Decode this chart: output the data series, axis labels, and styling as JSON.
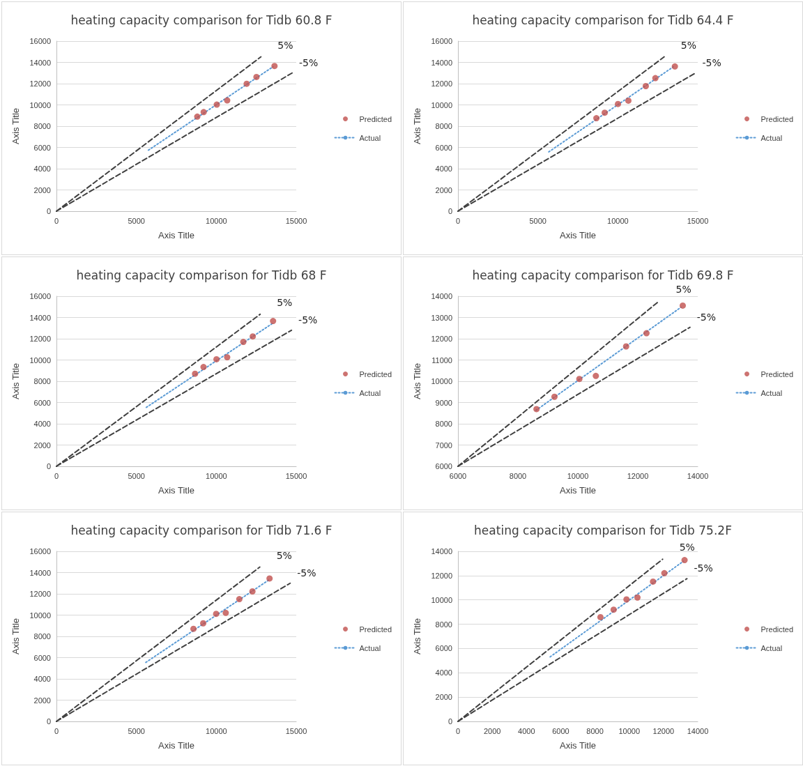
{
  "chart_data": [
    {
      "type": "scatter",
      "title": "heating capacity comparison for Tidb 60.8 F",
      "xlabel": "Axis Title",
      "ylabel": "Axis Title",
      "xlim": [
        0,
        15000
      ],
      "xticks": [
        0,
        5000,
        10000,
        15000
      ],
      "ylim": [
        0,
        16000
      ],
      "yticks": [
        0,
        2000,
        4000,
        6000,
        8000,
        10000,
        12000,
        14000,
        16000
      ],
      "grid": "y",
      "legend": "right",
      "series": [
        {
          "name": "Predicted",
          "color": "#c0504d",
          "marker": "circle",
          "x": [
            8810,
            9210,
            10030,
            10680,
            11900,
            12510,
            13640
          ],
          "values": [
            8900,
            9320,
            10030,
            10420,
            11990,
            12630,
            13660
          ]
        },
        {
          "name": "Actual",
          "type": "line",
          "color": "#5b9bd5",
          "marker": "none",
          "line_style": "dotted",
          "x": [
            5750,
            13550
          ],
          "values": [
            5740,
            13590
          ]
        },
        {
          "type": "line",
          "color": "#404040",
          "marker": "none",
          "line_style": "dashed",
          "x": [
            0,
            12790
          ],
          "values": [
            0,
            14520
          ]
        },
        {
          "type": "line",
          "color": "#404040",
          "marker": "none",
          "line_style": "dashed",
          "x": [
            0,
            14740
          ],
          "values": [
            0,
            13000
          ]
        }
      ],
      "annotations": [
        {
          "text": "5%",
          "x": 12790,
          "y": 14520
        },
        {
          "text": "-5%",
          "x": 14740,
          "y": 13000
        }
      ]
    },
    {
      "type": "scatter",
      "title": "heating capacity comparison for Tidb 64.4 F",
      "xlabel": "Axis Title",
      "ylabel": "Axis Title",
      "xlim": [
        0,
        15000
      ],
      "xticks": [
        0,
        5000,
        10000,
        15000
      ],
      "ylim": [
        0,
        16000
      ],
      "yticks": [
        0,
        2000,
        4000,
        6000,
        8000,
        10000,
        12000,
        14000,
        16000
      ],
      "grid": "y",
      "legend": "right",
      "series": [
        {
          "name": "Predicted",
          "color": "#c0504d",
          "marker": "circle",
          "x": [
            8660,
            9180,
            10010,
            10660,
            11750,
            12350,
            13570
          ],
          "values": [
            8750,
            9270,
            10090,
            10400,
            11770,
            12520,
            13620
          ]
        },
        {
          "name": "Actual",
          "type": "line",
          "color": "#5b9bd5",
          "marker": "none",
          "line_style": "dotted",
          "x": [
            5680,
            13470
          ],
          "values": [
            5580,
            13580
          ]
        },
        {
          "type": "line",
          "color": "#404040",
          "marker": "none",
          "line_style": "dashed",
          "x": [
            0,
            12900
          ],
          "values": [
            0,
            14520
          ]
        },
        {
          "type": "line",
          "color": "#404040",
          "marker": "none",
          "line_style": "dashed",
          "x": [
            0,
            14850
          ],
          "values": [
            0,
            12990
          ]
        }
      ],
      "annotations": [
        {
          "text": "5%",
          "x": 12900,
          "y": 14520
        },
        {
          "text": "-5%",
          "x": 14850,
          "y": 12990
        }
      ]
    },
    {
      "type": "scatter",
      "title": "heating capacity comparison for Tidb 68 F",
      "xlabel": "Axis Title",
      "ylabel": "Axis Title",
      "xlim": [
        0,
        15000
      ],
      "xticks": [
        0,
        5000,
        10000,
        15000
      ],
      "ylim": [
        0,
        16000
      ],
      "yticks": [
        0,
        2000,
        4000,
        6000,
        8000,
        10000,
        12000,
        14000,
        16000
      ],
      "grid": "y",
      "legend": "right",
      "series": [
        {
          "name": "Predicted",
          "color": "#c0504d",
          "marker": "circle",
          "x": [
            8670,
            9200,
            10010,
            10680,
            11690,
            12280,
            13550
          ],
          "values": [
            8710,
            9340,
            10070,
            10260,
            11700,
            12220,
            13670
          ]
        },
        {
          "name": "Actual",
          "type": "line",
          "color": "#5b9bd5",
          "marker": "none",
          "line_style": "dotted",
          "x": [
            5620,
            13550
          ],
          "values": [
            5540,
            13480
          ]
        },
        {
          "type": "line",
          "color": "#404040",
          "marker": "none",
          "line_style": "dashed",
          "x": [
            0,
            12740
          ],
          "values": [
            0,
            14300
          ]
        },
        {
          "type": "line",
          "color": "#404040",
          "marker": "none",
          "line_style": "dashed",
          "x": [
            0,
            14700
          ],
          "values": [
            0,
            12800
          ]
        }
      ],
      "annotations": [
        {
          "text": "5%",
          "x": 12740,
          "y": 14300
        },
        {
          "text": "-5%",
          "x": 14700,
          "y": 12800
        }
      ]
    },
    {
      "type": "scatter",
      "title": "heating capacity comparison for Tidb 69.8 F",
      "xlabel": "Axis Title",
      "ylabel": "Axis Title",
      "xlim": [
        6000,
        14000
      ],
      "xticks": [
        6000,
        8000,
        10000,
        12000,
        14000
      ],
      "ylim": [
        6000,
        14000
      ],
      "yticks": [
        6000,
        7000,
        8000,
        9000,
        10000,
        11000,
        12000,
        13000,
        14000
      ],
      "grid": "y",
      "legend": "right",
      "series": [
        {
          "name": "Predicted",
          "color": "#c0504d",
          "marker": "circle",
          "x": [
            8620,
            9220,
            10050,
            10600,
            11610,
            12290,
            13500
          ],
          "values": [
            8690,
            9270,
            10110,
            10250,
            11640,
            12260,
            13560
          ]
        },
        {
          "name": "Actual",
          "type": "line",
          "color": "#5b9bd5",
          "marker": "none",
          "line_style": "dotted",
          "x": [
            8600,
            13440
          ],
          "values": [
            8630,
            13480
          ]
        },
        {
          "type": "line",
          "color": "#404040",
          "marker": "none",
          "line_style": "dashed",
          "x": [
            6000,
            12710
          ],
          "values": [
            6000,
            13770
          ]
        },
        {
          "type": "line",
          "color": "#404040",
          "marker": "none",
          "line_style": "dashed",
          "x": [
            6000,
            13740
          ],
          "values": [
            6000,
            12540
          ]
        }
      ],
      "annotations": [
        {
          "text": "5%",
          "x": 12710,
          "y": 13770
        },
        {
          "text": "-5%",
          "x": 13740,
          "y": 12540
        }
      ]
    },
    {
      "type": "scatter",
      "title": "heating capacity comparison for Tidb 71.6 F",
      "xlabel": "Axis Title",
      "ylabel": "Axis Title",
      "xlim": [
        0,
        15000
      ],
      "xticks": [
        0,
        5000,
        10000,
        15000
      ],
      "ylim": [
        0,
        16000
      ],
      "yticks": [
        0,
        2000,
        4000,
        6000,
        8000,
        10000,
        12000,
        14000,
        16000
      ],
      "grid": "y",
      "legend": "right",
      "series": [
        {
          "name": "Predicted",
          "color": "#c0504d",
          "marker": "circle",
          "x": [
            8570,
            9180,
            9990,
            10590,
            11440,
            12260,
            13330
          ],
          "values": [
            8710,
            9230,
            10120,
            10210,
            11500,
            12230,
            13450
          ]
        },
        {
          "name": "Actual",
          "type": "line",
          "color": "#5b9bd5",
          "marker": "none",
          "line_style": "dotted",
          "x": [
            5590,
            13330
          ],
          "values": [
            5550,
            13350
          ]
        },
        {
          "type": "line",
          "color": "#404040",
          "marker": "none",
          "line_style": "dashed",
          "x": [
            0,
            12720
          ],
          "values": [
            0,
            14520
          ]
        },
        {
          "type": "line",
          "color": "#404040",
          "marker": "none",
          "line_style": "dashed",
          "x": [
            0,
            14620
          ],
          "values": [
            0,
            13000
          ]
        }
      ],
      "annotations": [
        {
          "text": "5%",
          "x": 12720,
          "y": 14520
        },
        {
          "text": "-5%",
          "x": 14620,
          "y": 13000
        }
      ]
    },
    {
      "type": "scatter",
      "title": "heating capacity comparison for Tidb 75.2F",
      "xlabel": "Axis Title",
      "ylabel": "Axis Title",
      "xlim": [
        0,
        14000
      ],
      "xticks": [
        0,
        2000,
        4000,
        6000,
        8000,
        10000,
        12000,
        14000
      ],
      "ylim": [
        0,
        14000
      ],
      "yticks": [
        0,
        2000,
        4000,
        6000,
        8000,
        10000,
        12000,
        14000
      ],
      "grid": "y",
      "legend": "right",
      "series": [
        {
          "name": "Predicted",
          "color": "#c0504d",
          "marker": "circle",
          "x": [
            8320,
            9090,
            9840,
            10480,
            11390,
            12050,
            13230
          ],
          "values": [
            8580,
            9200,
            10040,
            10200,
            11510,
            12200,
            13280
          ]
        },
        {
          "name": "Actual",
          "type": "line",
          "color": "#5b9bd5",
          "marker": "none",
          "line_style": "dotted",
          "x": [
            5380,
            13160
          ],
          "values": [
            5310,
            13180
          ]
        },
        {
          "type": "line",
          "color": "#404040",
          "marker": "none",
          "line_style": "dashed",
          "x": [
            0,
            11950
          ],
          "values": [
            0,
            13350
          ]
        },
        {
          "type": "line",
          "color": "#404040",
          "marker": "none",
          "line_style": "dashed",
          "x": [
            0,
            13370
          ],
          "values": [
            0,
            11750
          ]
        }
      ],
      "annotations": [
        {
          "text": "5%",
          "x": 11950,
          "y": 13350
        },
        {
          "text": "-5%",
          "x": 13370,
          "y": 11750
        }
      ]
    }
  ]
}
